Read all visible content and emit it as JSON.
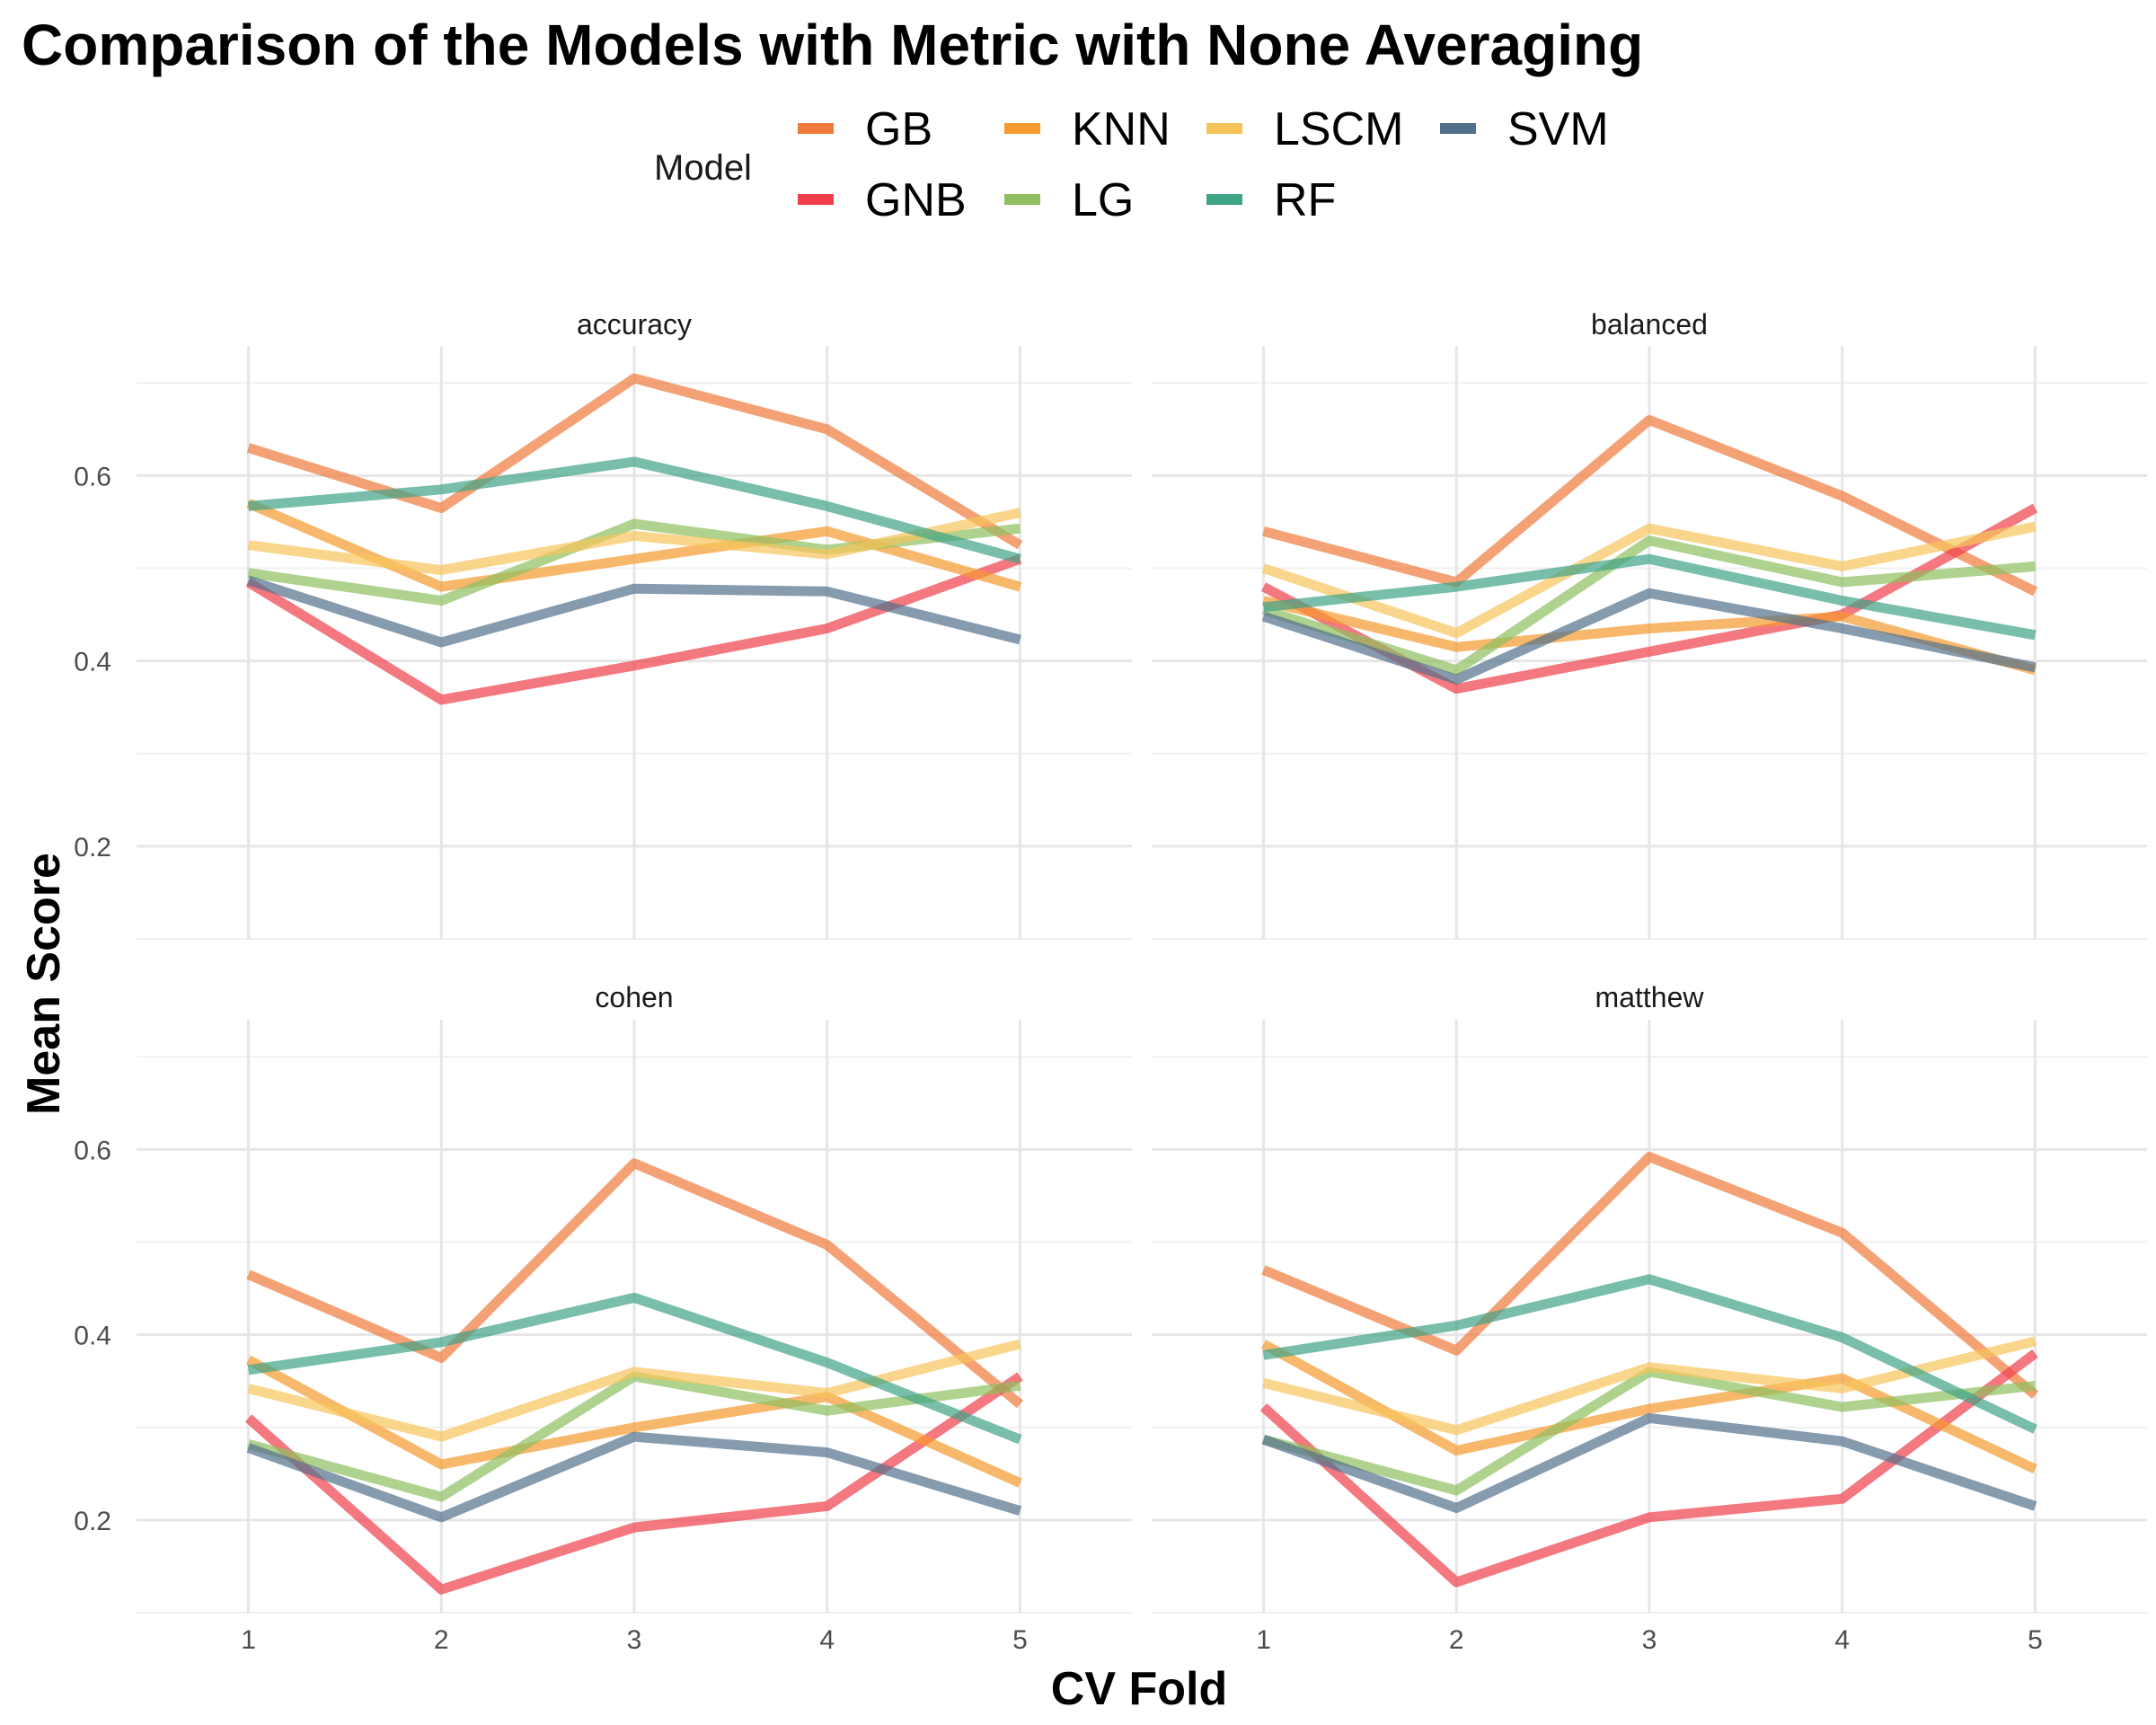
{
  "chart_data": {
    "type": "line",
    "title": "Comparison of the Models with Metric with None Averaging",
    "xlabel": "CV Fold",
    "ylabel": "Mean Score",
    "x": [
      1,
      2,
      3,
      4,
      5
    ],
    "ylim": [
      0.1,
      0.74
    ],
    "yticks": [
      0.2,
      0.4,
      0.6
    ],
    "yticks_labels": [
      "0.2",
      "0.4",
      "0.6"
    ],
    "grid": true,
    "legend": {
      "title": "Model",
      "placement": "top",
      "entries": [
        "GB",
        "GNB",
        "KNN",
        "LG",
        "LSCM",
        "RF",
        "SVM"
      ]
    },
    "colors": {
      "GB": "#F07A3A",
      "GNB": "#F03E4A",
      "KNN": "#F59A2E",
      "LG": "#8FBF5F",
      "LSCM": "#F7C45A",
      "RF": "#3FA386",
      "SVM": "#52708C"
    },
    "panels": [
      {
        "title": "accuracy",
        "series": [
          {
            "name": "GB",
            "values": [
              0.63,
              0.565,
              0.705,
              0.65,
              0.525
            ]
          },
          {
            "name": "GNB",
            "values": [
              0.485,
              0.358,
              0.395,
              0.435,
              0.51
            ]
          },
          {
            "name": "KNN",
            "values": [
              0.57,
              0.48,
              0.51,
              0.54,
              0.48
            ]
          },
          {
            "name": "LG",
            "values": [
              0.495,
              0.465,
              0.548,
              0.52,
              0.543
            ]
          },
          {
            "name": "LSCM",
            "values": [
              0.525,
              0.498,
              0.535,
              0.515,
              0.56
            ]
          },
          {
            "name": "RF",
            "values": [
              0.567,
              0.585,
              0.615,
              0.567,
              0.51
            ]
          },
          {
            "name": "SVM",
            "values": [
              0.487,
              0.42,
              0.478,
              0.475,
              0.423
            ]
          }
        ]
      },
      {
        "title": "balanced",
        "series": [
          {
            "name": "GB",
            "values": [
              0.54,
              0.485,
              0.66,
              0.578,
              0.475
            ]
          },
          {
            "name": "GNB",
            "values": [
              0.48,
              0.37,
              0.41,
              0.45,
              0.565
            ]
          },
          {
            "name": "KNN",
            "values": [
              0.465,
              0.415,
              0.435,
              0.448,
              0.39
            ]
          },
          {
            "name": "LG",
            "values": [
              0.455,
              0.39,
              0.53,
              0.485,
              0.502
            ]
          },
          {
            "name": "LSCM",
            "values": [
              0.5,
              0.43,
              0.543,
              0.502,
              0.545
            ]
          },
          {
            "name": "RF",
            "values": [
              0.458,
              0.48,
              0.51,
              0.465,
              0.428
            ]
          },
          {
            "name": "SVM",
            "values": [
              0.448,
              0.38,
              0.473,
              0.435,
              0.393
            ]
          }
        ]
      },
      {
        "title": "cohen",
        "series": [
          {
            "name": "GB",
            "values": [
              0.465,
              0.375,
              0.585,
              0.497,
              0.325
            ]
          },
          {
            "name": "GNB",
            "values": [
              0.31,
              0.125,
              0.192,
              0.215,
              0.355
            ]
          },
          {
            "name": "KNN",
            "values": [
              0.373,
              0.26,
              0.3,
              0.333,
              0.24
            ]
          },
          {
            "name": "LG",
            "values": [
              0.282,
              0.225,
              0.355,
              0.318,
              0.345
            ]
          },
          {
            "name": "LSCM",
            "values": [
              0.342,
              0.29,
              0.36,
              0.337,
              0.39
            ]
          },
          {
            "name": "RF",
            "values": [
              0.362,
              0.392,
              0.44,
              0.37,
              0.287
            ]
          },
          {
            "name": "SVM",
            "values": [
              0.278,
              0.203,
              0.29,
              0.273,
              0.21
            ]
          }
        ]
      },
      {
        "title": "matthew",
        "series": [
          {
            "name": "GB",
            "values": [
              0.47,
              0.383,
              0.592,
              0.51,
              0.335
            ]
          },
          {
            "name": "GNB",
            "values": [
              0.322,
              0.133,
              0.203,
              0.223,
              0.38
            ]
          },
          {
            "name": "KNN",
            "values": [
              0.39,
              0.275,
              0.32,
              0.353,
              0.255
            ]
          },
          {
            "name": "LG",
            "values": [
              0.287,
              0.232,
              0.36,
              0.322,
              0.345
            ]
          },
          {
            "name": "LSCM",
            "values": [
              0.348,
              0.297,
              0.365,
              0.342,
              0.393
            ]
          },
          {
            "name": "RF",
            "values": [
              0.378,
              0.41,
              0.46,
              0.397,
              0.298
            ]
          },
          {
            "name": "SVM",
            "values": [
              0.287,
              0.213,
              0.31,
              0.285,
              0.215
            ]
          }
        ]
      }
    ]
  }
}
